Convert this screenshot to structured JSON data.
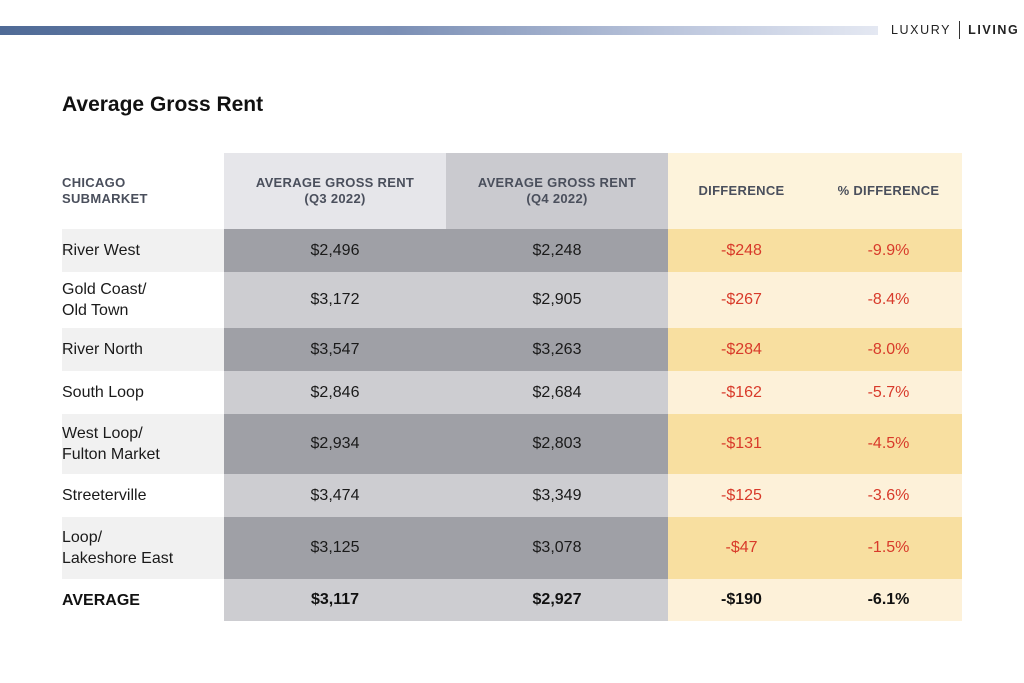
{
  "brand": {
    "left": "LUXURY",
    "right": "LIVING"
  },
  "colors": {
    "accent_bar": "#4f6a96",
    "negative": "#d83a2a",
    "highlight": "#f8dfa0"
  },
  "chart_data": {
    "type": "table",
    "title": "Average Gross Rent",
    "columns": [
      {
        "line1": "CHICAGO",
        "line2": "SUBMARKET"
      },
      {
        "line1": "AVERAGE GROSS RENT",
        "line2": "(Q3 2022)"
      },
      {
        "line1": "AVERAGE GROSS RENT",
        "line2": "(Q4 2022)"
      },
      {
        "line1": "DIFFERENCE",
        "line2": ""
      },
      {
        "line1": "% DIFFERENCE",
        "line2": ""
      }
    ],
    "rows": [
      {
        "name1": "River West",
        "name2": "",
        "q3": "$2,496",
        "q4": "$2,248",
        "diff": "-$248",
        "pct": "-9.9%"
      },
      {
        "name1": "Gold Coast/",
        "name2": "Old Town",
        "q3": "$3,172",
        "q4": "$2,905",
        "diff": "-$267",
        "pct": "-8.4%"
      },
      {
        "name1": "River North",
        "name2": "",
        "q3": "$3,547",
        "q4": "$3,263",
        "diff": "-$284",
        "pct": "-8.0%"
      },
      {
        "name1": "South Loop",
        "name2": "",
        "q3": "$2,846",
        "q4": "$2,684",
        "diff": "-$162",
        "pct": "-5.7%"
      },
      {
        "name1": "West Loop/",
        "name2": "Fulton Market",
        "q3": "$2,934",
        "q4": "$2,803",
        "diff": "-$131",
        "pct": "-4.5%"
      },
      {
        "name1": "Streeterville",
        "name2": "",
        "q3": "$3,474",
        "q4": "$3,349",
        "diff": "-$125",
        "pct": "-3.6%"
      },
      {
        "name1": "Loop/",
        "name2": "Lakeshore East",
        "q3": "$3,125",
        "q4": "$3,078",
        "diff": "-$47",
        "pct": "-1.5%"
      }
    ],
    "average": {
      "label": "AVERAGE",
      "q3": "$3,117",
      "q4": "$2,927",
      "diff": "-$190",
      "pct": "-6.1%"
    }
  }
}
